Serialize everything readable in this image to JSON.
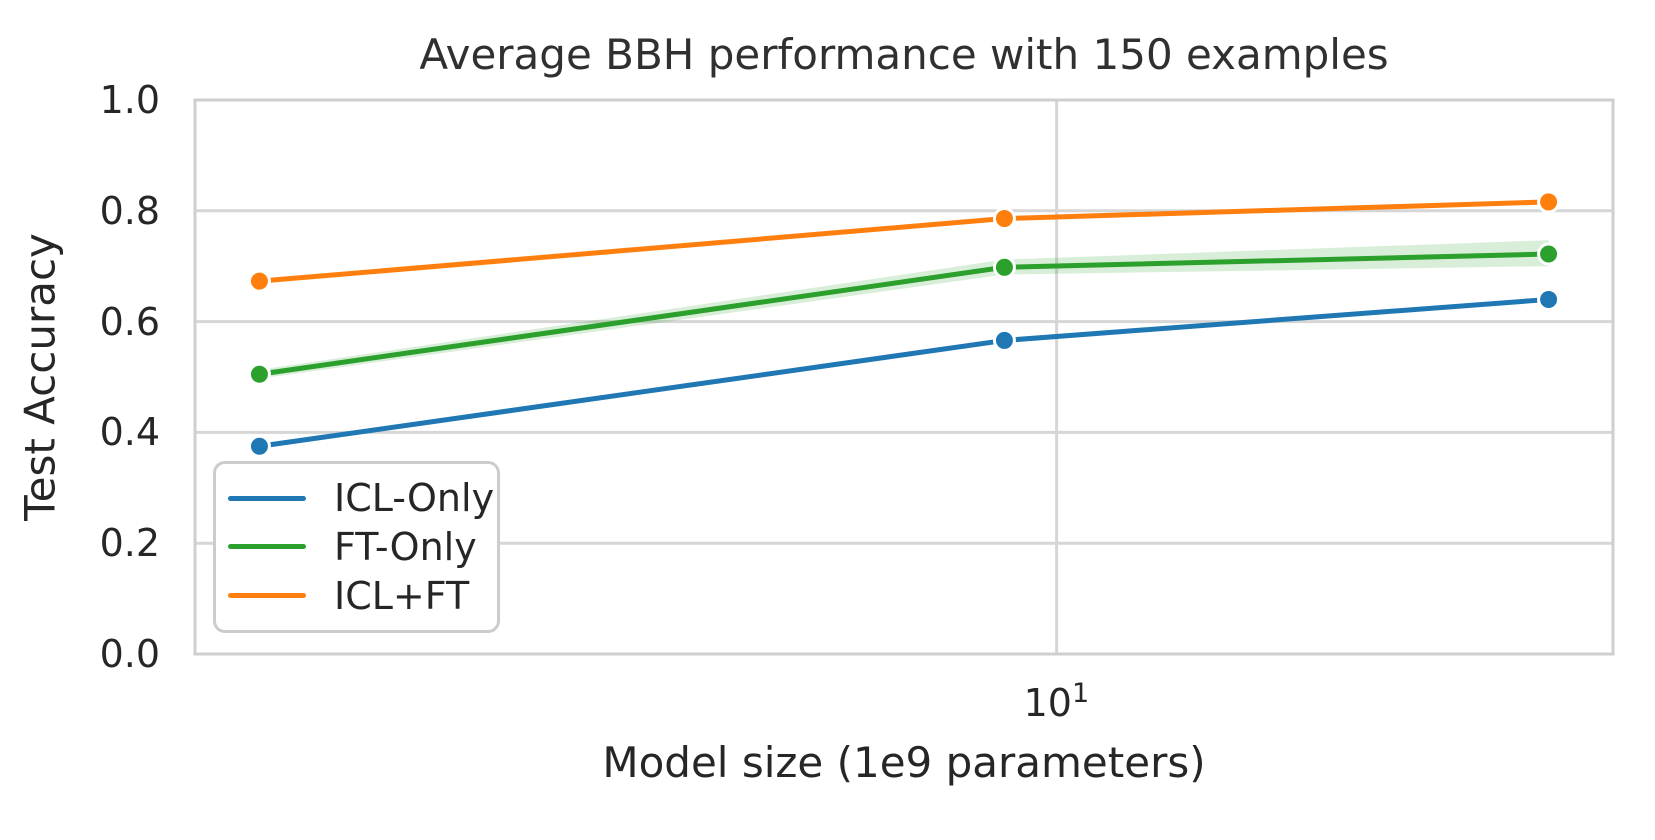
{
  "chart_data": {
    "type": "line",
    "title": "Average BBH performance with 150 examples",
    "xlabel": "Model size (1e9 parameters)",
    "ylabel": "Test Accuracy",
    "x_scale": "log",
    "x": [
      2,
      9,
      27
    ],
    "series": [
      {
        "name": "ICL-Only",
        "color": "#1f77b4",
        "values": [
          0.375,
          0.566,
          0.64
        ]
      },
      {
        "name": "FT-Only",
        "color": "#2ca02c",
        "values": [
          0.505,
          0.698,
          0.722
        ],
        "band_lower": [
          0.497,
          0.685,
          0.7
        ],
        "band_upper": [
          0.513,
          0.712,
          0.747
        ]
      },
      {
        "name": "ICL+FT",
        "color": "#ff7f0e",
        "values": [
          0.673,
          0.786,
          0.816
        ]
      }
    ],
    "ylim": [
      0.0,
      1.0
    ],
    "xlim": [
      1.756,
      30.75
    ],
    "y_ticks": [
      0.0,
      0.2,
      0.4,
      0.6,
      0.8,
      1.0
    ],
    "y_tick_labels": [
      "0.0",
      "0.2",
      "0.4",
      "0.6",
      "0.8",
      "1.0"
    ],
    "x_ticks": [
      {
        "value": 10,
        "base": "10",
        "exponent": "1"
      }
    ],
    "grid": true,
    "legend_position": "lower left",
    "colors": {
      "background": "#ffffff",
      "grid": "#d6d6d6",
      "spine": "#cfcfcf",
      "text": "#262626"
    }
  }
}
